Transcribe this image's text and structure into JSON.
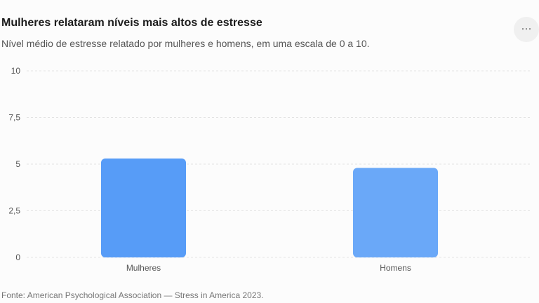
{
  "header": {
    "title": "Mulheres relataram níveis mais altos de estresse",
    "subtitle": "Nível médio de estresse relatado por mulheres e homens, em uma escala de 0 a 10.",
    "more_icon": "more-horizontal-icon",
    "more_glyph": "···"
  },
  "footer": {
    "source": "Fonte: American Psychological Association — Stress in America 2023."
  },
  "colors": {
    "bar_primary": "#579cf7",
    "bar_secondary": "#6aa8f8",
    "grid": "#e3e3e3",
    "tick_text": "#555555"
  },
  "chart_data": {
    "type": "bar",
    "title": "Mulheres relataram níveis mais altos de estresse",
    "subtitle": "Nível médio de estresse relatado por mulheres e homens, em uma escala de 0 a 10.",
    "xlabel": "",
    "ylabel": "",
    "categories": [
      "Mulheres",
      "Homens"
    ],
    "values": [
      5.3,
      4.8
    ],
    "ylim": [
      0,
      10
    ],
    "yticks": [
      0,
      2.5,
      5,
      7.5,
      10
    ],
    "ytick_labels": [
      "0",
      "2,5",
      "5",
      "7,5",
      "10"
    ],
    "grid": true,
    "legend": "none"
  }
}
